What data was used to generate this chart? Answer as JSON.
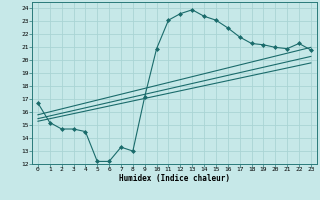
{
  "xlabel": "Humidex (Indice chaleur)",
  "ylabel": "",
  "xlim": [
    -0.5,
    23.5
  ],
  "ylim": [
    12,
    24.5
  ],
  "xticks": [
    0,
    1,
    2,
    3,
    4,
    5,
    6,
    7,
    8,
    9,
    10,
    11,
    12,
    13,
    14,
    15,
    16,
    17,
    18,
    19,
    20,
    21,
    22,
    23
  ],
  "yticks": [
    12,
    13,
    14,
    15,
    16,
    17,
    18,
    19,
    20,
    21,
    22,
    23,
    24
  ],
  "bg_color": "#c6e8e8",
  "grid_color": "#aad4d4",
  "line_color": "#1a6b6b",
  "line1_x": [
    0,
    1,
    2,
    3,
    4,
    5,
    6,
    7,
    8,
    9,
    10,
    11,
    12,
    13,
    14,
    15,
    16,
    17,
    18,
    19,
    20,
    21,
    22,
    23
  ],
  "line1_y": [
    16.7,
    15.2,
    14.7,
    14.7,
    14.5,
    12.2,
    12.2,
    13.3,
    13.0,
    17.2,
    20.9,
    23.1,
    23.6,
    23.9,
    23.4,
    23.1,
    22.5,
    21.8,
    21.3,
    21.2,
    21.0,
    20.9,
    21.3,
    20.8
  ],
  "line2_x": [
    0,
    23
  ],
  "line2_y": [
    15.5,
    20.3
  ],
  "line3_x": [
    0,
    23
  ],
  "line3_y": [
    15.3,
    19.8
  ],
  "line4_x": [
    0,
    23
  ],
  "line4_y": [
    15.8,
    21.0
  ],
  "marker_x": [
    0,
    1,
    2,
    3,
    4,
    5,
    6,
    7,
    8,
    9,
    10,
    11,
    12,
    13,
    14,
    15,
    16,
    17,
    18,
    19,
    20,
    21,
    22,
    23
  ]
}
